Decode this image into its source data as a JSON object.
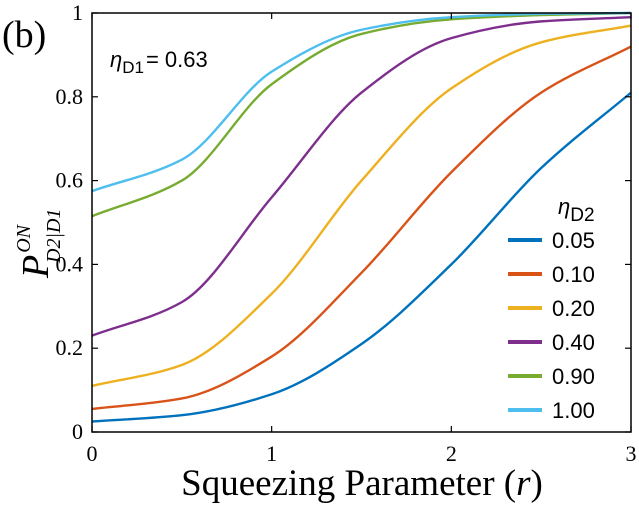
{
  "panel_label": "(b)",
  "annotation": {
    "symbol": "η",
    "subscript": "D1",
    "text": "= 0.63"
  },
  "ylabel": {
    "symbol": "P",
    "superscript": "ON",
    "subscript": "D2|D1"
  },
  "chart_data": {
    "type": "line",
    "title": "",
    "xlabel": "Squeezing Parameter (",
    "xlabel_var": "r",
    "xlabel_close": ")",
    "xlim": [
      0,
      3
    ],
    "ylim": [
      0,
      1
    ],
    "xticks": [
      "0",
      "1",
      "2",
      "3"
    ],
    "yticks": [
      "0",
      "0.2",
      "0.4",
      "0.6",
      "0.8",
      "1"
    ],
    "grid": false,
    "legend_title_symbol": "η",
    "legend_title_subscript": "D2",
    "legend_position": "right",
    "series": [
      {
        "name": "0.05",
        "color": "#0072BD",
        "x": [
          0,
          0.5,
          1,
          1.5,
          2,
          2.5,
          3
        ],
        "y": [
          0.025,
          0.04,
          0.09,
          0.21,
          0.4,
          0.63,
          0.81
        ]
      },
      {
        "name": "0.10",
        "color": "#D95319",
        "x": [
          0,
          0.5,
          1,
          1.5,
          2,
          2.5,
          3
        ],
        "y": [
          0.055,
          0.08,
          0.18,
          0.38,
          0.62,
          0.81,
          0.92
        ]
      },
      {
        "name": "0.20",
        "color": "#EDB120",
        "x": [
          0,
          0.5,
          1,
          1.5,
          2,
          2.5,
          3
        ],
        "y": [
          0.11,
          0.16,
          0.33,
          0.6,
          0.82,
          0.93,
          0.97
        ]
      },
      {
        "name": "0.40",
        "color": "#7E2F8E",
        "x": [
          0,
          0.5,
          1,
          1.5,
          2,
          2.5,
          3
        ],
        "y": [
          0.23,
          0.31,
          0.56,
          0.81,
          0.94,
          0.98,
          0.99
        ]
      },
      {
        "name": "0.90",
        "color": "#77AC30",
        "x": [
          0,
          0.5,
          1,
          1.5,
          2,
          2.5,
          3
        ],
        "y": [
          0.515,
          0.6,
          0.83,
          0.95,
          0.985,
          0.995,
          1.0
        ]
      },
      {
        "name": "1.00",
        "color": "#4DBEEE",
        "x": [
          0,
          0.5,
          1,
          1.5,
          2,
          2.5,
          3
        ],
        "y": [
          0.575,
          0.65,
          0.86,
          0.96,
          0.99,
          0.998,
          1.0
        ]
      }
    ]
  }
}
